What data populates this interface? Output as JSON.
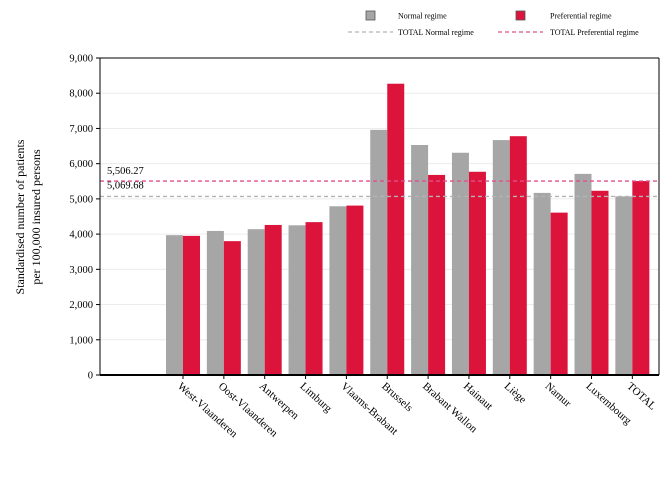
{
  "chart_data": {
    "type": "bar",
    "title": "",
    "xlabel": "",
    "ylabel": [
      "Standardised number of patients",
      "per 100,000 insured persons"
    ],
    "ylim": [
      0,
      9000
    ],
    "yticks": [
      0,
      1000,
      2000,
      3000,
      4000,
      5000,
      6000,
      7000,
      8000,
      9000
    ],
    "ytick_labels": [
      "0",
      "1,000",
      "2,000",
      "3,000",
      "4,000",
      "5,000",
      "6,000",
      "7,000",
      "8,000",
      "9,000"
    ],
    "grid": true,
    "legend_position": "top",
    "categories": [
      "West-Vlaanderen",
      "Oost-Vlaanderen",
      "Antwerpen",
      "Limburg",
      "Vlaams-Brabant",
      "Brussels",
      "Brabant Wallon",
      "Hainaut",
      "Liège",
      "Namur",
      "Luxembourg",
      "TOTAL"
    ],
    "series": [
      {
        "name": "Normal regime",
        "color": "#a6a6a6",
        "values": [
          3970,
          4090,
          4140,
          4250,
          4790,
          6960,
          6530,
          6310,
          6670,
          5170,
          5710,
          5070
        ]
      },
      {
        "name": "Preferential regime",
        "color": "#dc143c",
        "values": [
          3950,
          3800,
          4260,
          4340,
          4810,
          8270,
          5680,
          5770,
          6780,
          4610,
          5230,
          5506
        ]
      }
    ],
    "reference_lines": [
      {
        "name": "TOTAL Normal regime",
        "value": 5069.68,
        "label": "5,069.68",
        "color": "#b3b3b3"
      },
      {
        "name": "TOTAL Preferential regime",
        "value": 5506.27,
        "label": "5,506.27",
        "color": "#e0508a"
      }
    ]
  }
}
